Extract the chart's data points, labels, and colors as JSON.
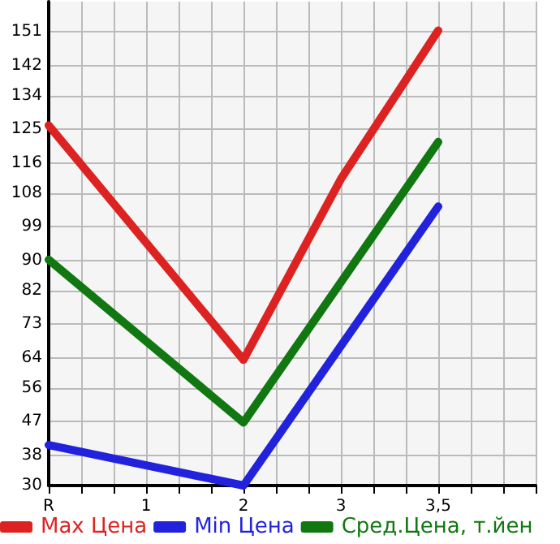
{
  "chart_data": {
    "type": "line",
    "categories": [
      "R",
      null,
      null,
      "1",
      null,
      null,
      "2",
      null,
      null,
      "3",
      null,
      null,
      "3,5",
      null,
      null,
      null
    ],
    "series": [
      {
        "name": "Max Цена",
        "color": "#dd2222",
        "values": [
          126,
          null,
          null,
          null,
          null,
          null,
          63.5,
          null,
          null,
          111.7,
          null,
          null,
          151.3,
          null,
          null,
          null
        ]
      },
      {
        "name": "Min Цена",
        "color": "#2222dd",
        "values": [
          40.8,
          null,
          null,
          null,
          null,
          null,
          30,
          null,
          null,
          67.2,
          null,
          null,
          104.4,
          null,
          null,
          null
        ]
      },
      {
        "name": "Сред.Цена, т.йен",
        "color": "#117711",
        "values": [
          90.2,
          null,
          null,
          null,
          null,
          null,
          46.8,
          null,
          null,
          84.2,
          null,
          null,
          121.6,
          null,
          null,
          null
        ]
      }
    ],
    "ylim": [
      30,
      159
    ],
    "yticks": [
      30,
      38,
      47,
      56,
      64,
      73,
      82,
      90,
      99,
      108,
      116,
      125,
      134,
      142,
      151
    ],
    "grid": true,
    "legend": "bottom",
    "marker": "none",
    "line_style": "solid"
  }
}
